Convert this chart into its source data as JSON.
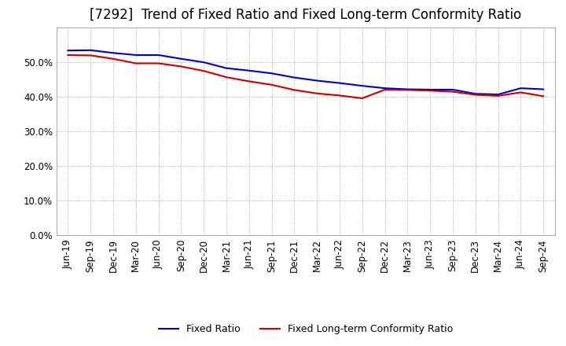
{
  "title": "[7292]  Trend of Fixed Ratio and Fixed Long-term Conformity Ratio",
  "x_labels": [
    "Jun-19",
    "Sep-19",
    "Dec-19",
    "Mar-20",
    "Jun-20",
    "Sep-20",
    "Dec-20",
    "Mar-21",
    "Jun-21",
    "Sep-21",
    "Dec-21",
    "Mar-22",
    "Jun-22",
    "Sep-22",
    "Dec-22",
    "Mar-23",
    "Jun-23",
    "Sep-23",
    "Dec-23",
    "Mar-24",
    "Jun-24",
    "Sep-24"
  ],
  "fixed_ratio": [
    0.534,
    0.535,
    0.527,
    0.521,
    0.521,
    0.51,
    0.5,
    0.483,
    0.476,
    0.468,
    0.456,
    0.447,
    0.44,
    0.432,
    0.425,
    0.422,
    0.421,
    0.421,
    0.409,
    0.407,
    0.425,
    0.422
  ],
  "fixed_lt_ratio": [
    0.521,
    0.52,
    0.51,
    0.497,
    0.497,
    0.488,
    0.475,
    0.457,
    0.445,
    0.435,
    0.42,
    0.41,
    0.404,
    0.396,
    0.421,
    0.42,
    0.418,
    0.415,
    0.406,
    0.403,
    0.413,
    0.402
  ],
  "line_color_fixed": "#0000cd",
  "line_color_lt": "#cc0000",
  "ylim": [
    0.0,
    0.6
  ],
  "yticks": [
    0.0,
    0.1,
    0.2,
    0.3,
    0.4,
    0.5
  ],
  "legend_fixed": "Fixed Ratio",
  "legend_lt": "Fixed Long-term Conformity Ratio",
  "bg_color": "#FFFFFF",
  "grid_color": "#999999",
  "title_fontsize": 12,
  "axis_fontsize": 8.5,
  "legend_fontsize": 9
}
